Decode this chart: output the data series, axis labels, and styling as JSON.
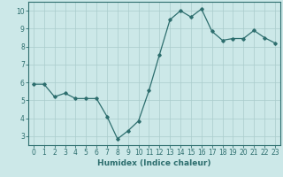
{
  "x": [
    0,
    1,
    2,
    3,
    4,
    5,
    6,
    7,
    8,
    9,
    10,
    11,
    12,
    13,
    14,
    15,
    16,
    17,
    18,
    19,
    20,
    21,
    22,
    23
  ],
  "y": [
    5.9,
    5.9,
    5.2,
    5.4,
    5.1,
    5.1,
    5.1,
    4.1,
    2.85,
    3.3,
    3.85,
    5.55,
    7.55,
    9.5,
    10.0,
    9.65,
    10.1,
    8.85,
    8.35,
    8.45,
    8.45,
    8.9,
    8.5,
    8.2
  ],
  "line_color": "#2d6e6e",
  "marker": "D",
  "markersize": 1.8,
  "linewidth": 0.9,
  "xlabel": "Humidex (Indice chaleur)",
  "xlim": [
    -0.5,
    23.5
  ],
  "ylim": [
    2.5,
    10.5
  ],
  "yticks": [
    3,
    4,
    5,
    6,
    7,
    8,
    9,
    10
  ],
  "xticks": [
    0,
    1,
    2,
    3,
    4,
    5,
    6,
    7,
    8,
    9,
    10,
    11,
    12,
    13,
    14,
    15,
    16,
    17,
    18,
    19,
    20,
    21,
    22,
    23
  ],
  "bg_color": "#cce8e8",
  "grid_color": "#aacccc",
  "axes_color": "#2d6e6e",
  "xlabel_fontsize": 6.5,
  "tick_fontsize": 5.5
}
